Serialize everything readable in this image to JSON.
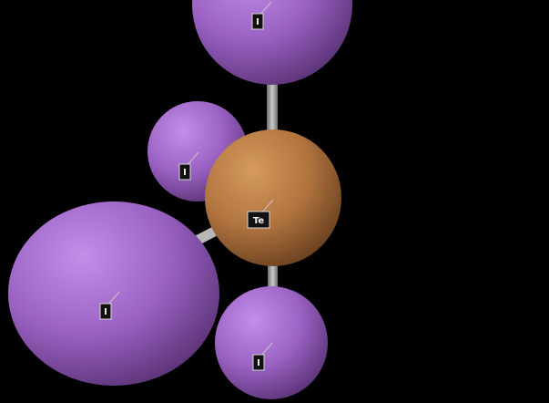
{
  "molecule": {
    "center": {
      "symbol": "Te",
      "color": "#b87a42"
    },
    "ligands": [
      {
        "symbol": "I",
        "color": "#a56bd0"
      },
      {
        "symbol": "I",
        "color": "#a56bd0"
      },
      {
        "symbol": "I",
        "color": "#a56bd0"
      },
      {
        "symbol": "I",
        "color": "#a56bd0"
      }
    ],
    "bond_color": "#9a9a9a"
  }
}
